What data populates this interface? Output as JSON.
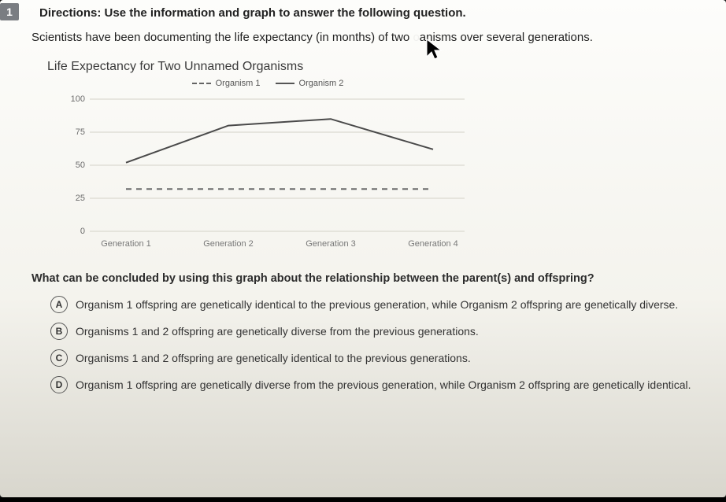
{
  "question_number": "1",
  "directions": "Directions: Use the information and graph to answer the following question.",
  "intro_pre": "Scientists have been documenting the life expectancy (in months) of two ",
  "intro_mid": "o",
  "intro_post": "anisms over several generations.",
  "chart": {
    "title": "Life Expectancy for Two Unnamed Organisms",
    "legend": {
      "series1": "Organism 1",
      "series2": "Organism 2"
    },
    "yticks": [
      "100",
      "75",
      "50",
      "25",
      "0"
    ],
    "xticks": [
      "Generation 1",
      "Generation 2",
      "Generation 3",
      "Generation 4"
    ],
    "ylim": [
      0,
      100
    ],
    "series1_values": [
      32,
      32,
      32,
      32
    ],
    "series2_values": [
      52,
      80,
      85,
      62
    ],
    "colors": {
      "grid": "#d4d2c8",
      "axis_text": "#787878",
      "series1": "#6a6a6a",
      "series2": "#4a4a4a",
      "background": "transparent"
    },
    "line_width": 2
  },
  "question": "What can be concluded by using this graph about the relationship between the parent(s) and offspring?",
  "options": {
    "A": "Organism 1 offspring are genetically identical to the previous generation, while Organism 2 offspring are genetically diverse.",
    "B": "Organisms 1 and 2 offspring are genetically diverse from the previous generations.",
    "C": "Organisms 1 and 2 offspring are genetically identical to the previous generations.",
    "D": "Organism 1 offspring are genetically diverse from the previous generation, while Organism 2 offspring are genetically identical."
  }
}
